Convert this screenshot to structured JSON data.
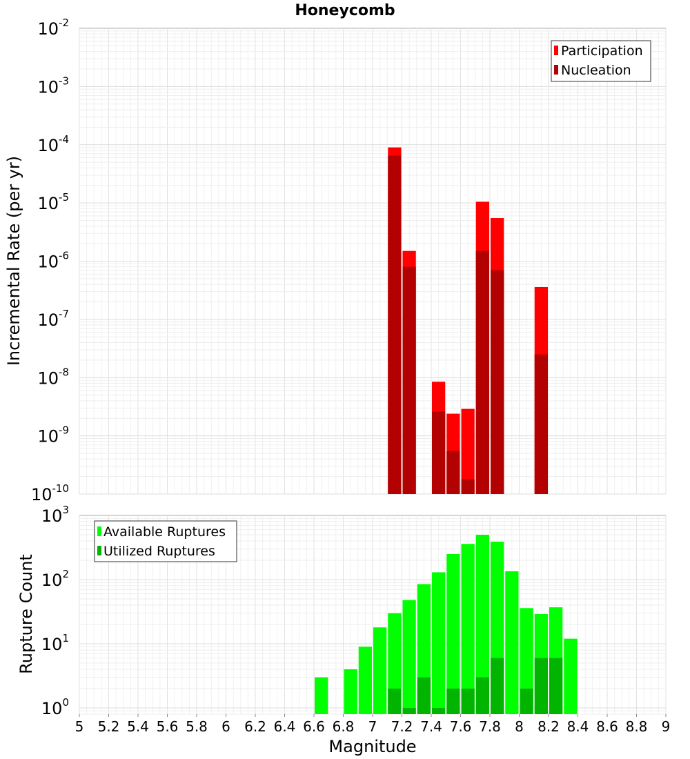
{
  "title": "Honeycomb",
  "chart_data": [
    {
      "type": "bar",
      "title": "Honeycomb",
      "xlabel": "",
      "ylabel": "Incremental Rate (per yr)",
      "yscale": "log",
      "ylim": [
        1e-10,
        0.01
      ],
      "xlim": [
        5,
        9
      ],
      "legend": {
        "placement": "top-right",
        "entries": [
          "Participation",
          "Nucleation"
        ]
      },
      "bin_width": 0.1,
      "y_ticks": [
        {
          "base": "10",
          "exp": "-10"
        },
        {
          "base": "10",
          "exp": "-9"
        },
        {
          "base": "10",
          "exp": "-8"
        },
        {
          "base": "10",
          "exp": "-7"
        },
        {
          "base": "10",
          "exp": "-6"
        },
        {
          "base": "10",
          "exp": "-5"
        },
        {
          "base": "10",
          "exp": "-4"
        },
        {
          "base": "10",
          "exp": "-3"
        },
        {
          "base": "10",
          "exp": "-2"
        }
      ],
      "series": [
        {
          "name": "Participation",
          "color": "#ff0000",
          "x": [
            7.15,
            7.25,
            7.45,
            7.55,
            7.65,
            7.75,
            7.85,
            8.15
          ],
          "values": [
            9e-05,
            1.5e-06,
            8.5e-09,
            2.4e-09,
            2.9e-09,
            1.05e-05,
            5.5e-06,
            3.6e-07
          ]
        },
        {
          "name": "Nucleation",
          "color": "#b30000",
          "x": [
            7.15,
            7.25,
            7.45,
            7.55,
            7.65,
            7.75,
            7.85,
            8.15
          ],
          "values": [
            6.5e-05,
            8e-07,
            2.6e-09,
            5.5e-10,
            1.8e-10,
            1.5e-06,
            7e-07,
            2.5e-08
          ]
        }
      ]
    },
    {
      "type": "bar",
      "title": "",
      "xlabel": "Magnitude",
      "ylabel": "Rupture Count",
      "yscale": "log",
      "ylim": [
        0.8,
        1000
      ],
      "xlim": [
        5,
        9
      ],
      "legend": {
        "placement": "top-left",
        "entries": [
          "Available Ruptures",
          "Utilized Ruptures"
        ]
      },
      "bin_width": 0.1,
      "x_ticks": [
        "5",
        "5.2",
        "5.4",
        "5.6",
        "5.8",
        "6",
        "6.2",
        "6.4",
        "6.6",
        "6.8",
        "7",
        "7.2",
        "7.4",
        "7.6",
        "7.8",
        "8",
        "8.2",
        "8.4",
        "8.6",
        "8.8",
        "9"
      ],
      "y_ticks": [
        {
          "base": "10",
          "exp": "0"
        },
        {
          "base": "10",
          "exp": "1"
        },
        {
          "base": "10",
          "exp": "2"
        },
        {
          "base": "10",
          "exp": "3"
        }
      ],
      "series": [
        {
          "name": "Available Ruptures",
          "color": "#00ff00",
          "x": [
            6.65,
            6.85,
            6.95,
            7.05,
            7.15,
            7.25,
            7.35,
            7.45,
            7.55,
            7.65,
            7.75,
            7.85,
            7.95,
            8.05,
            8.15,
            8.25,
            8.35
          ],
          "values": [
            3,
            4,
            9,
            18,
            30,
            48,
            85,
            130,
            250,
            360,
            500,
            390,
            135,
            36,
            29,
            37,
            12
          ]
        },
        {
          "name": "Utilized Ruptures",
          "color": "#00b400",
          "x": [
            7.15,
            7.25,
            7.35,
            7.45,
            7.55,
            7.65,
            7.75,
            7.85,
            8.05,
            8.15,
            8.25
          ],
          "values": [
            2,
            1,
            3,
            1,
            2,
            2,
            3,
            6,
            2,
            6,
            6
          ]
        }
      ]
    }
  ]
}
